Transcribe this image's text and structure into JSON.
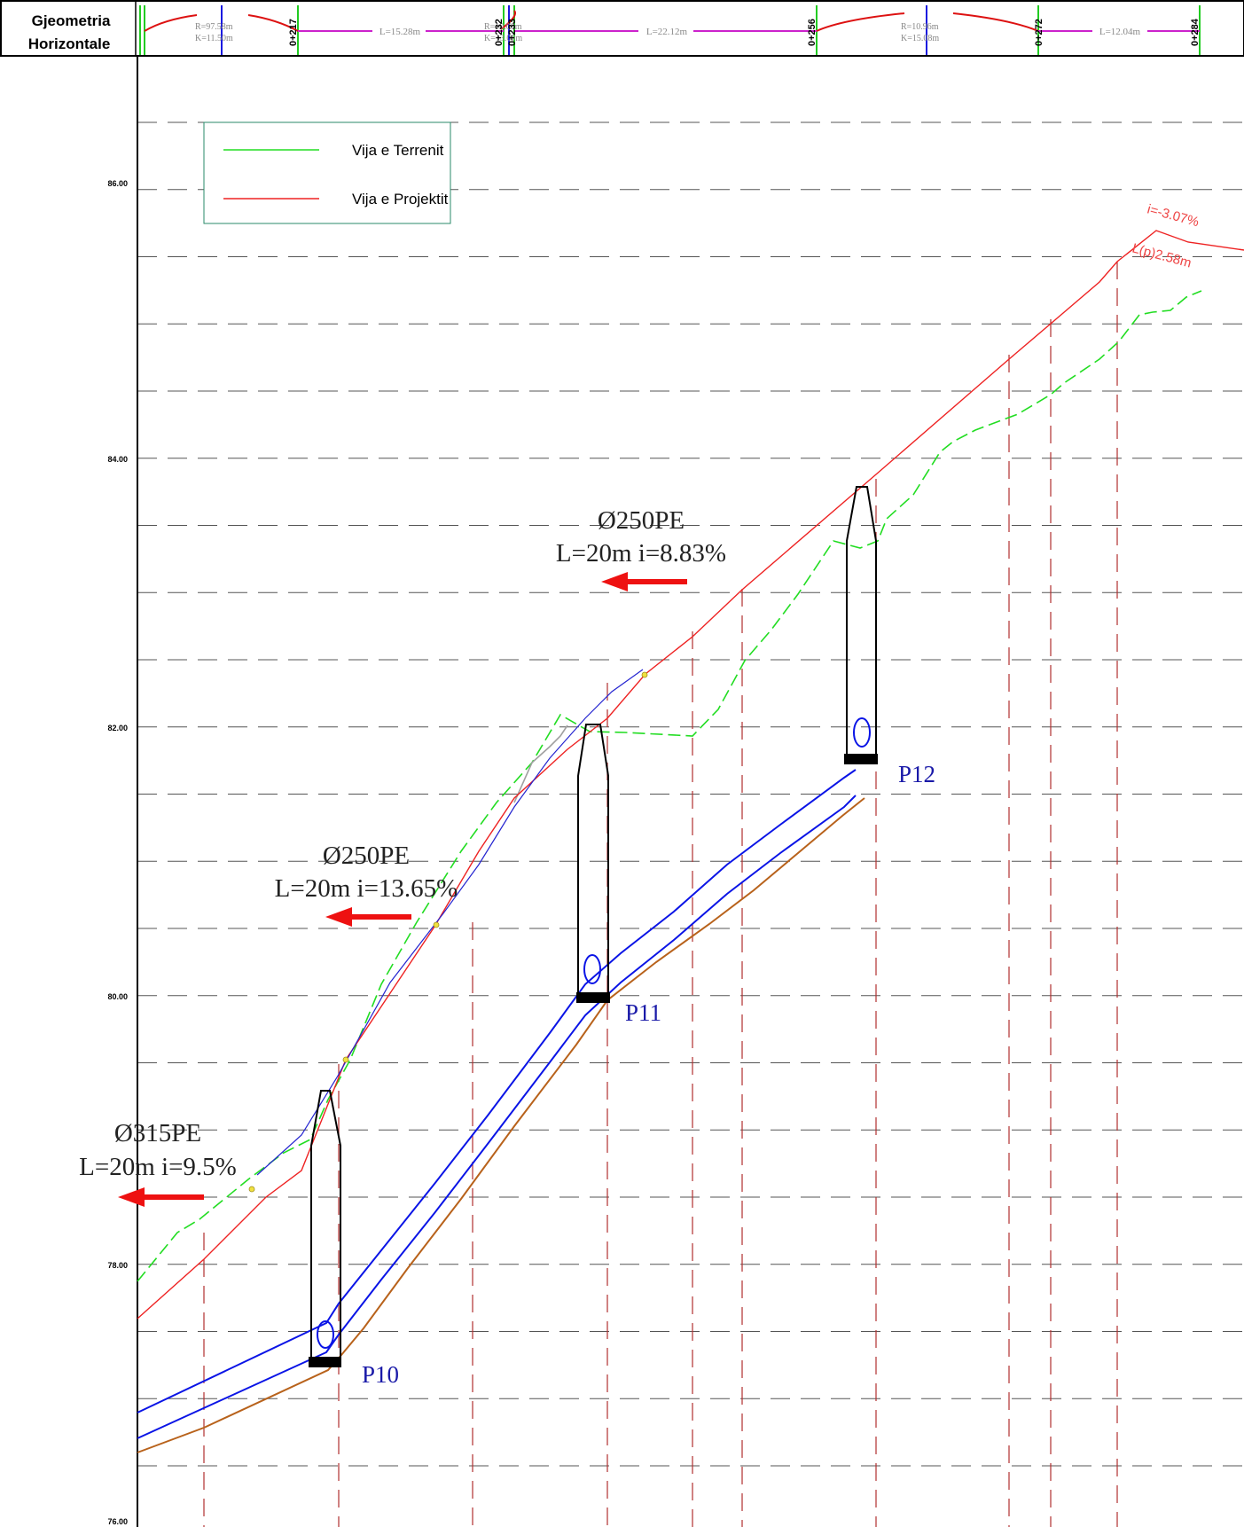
{
  "header": {
    "label_line1": "Gjeometria",
    "label_line2": "Horizontale",
    "curves": [
      {
        "R": "R=97.58m",
        "K": "K=11.50m"
      },
      {
        "R": "R=10.00m",
        "K": "K=13.00m"
      },
      {
        "R": "R=10.96m",
        "K": "K=15.08m"
      }
    ],
    "straights": [
      "L=15.28m",
      "L=22.12m",
      "L=12.04m"
    ],
    "stations": [
      "0+217",
      "0+232",
      "0+233",
      "0+256",
      "0+272",
      "0+284"
    ]
  },
  "y_axis": {
    "labels": [
      "86.00",
      "84.00",
      "82.00",
      "80.00",
      "78.00",
      "76.00"
    ]
  },
  "legend": {
    "terrain_label": "Vija e Terrenit",
    "design_label": "Vija e Projektit",
    "terrain_color": "#22dd22",
    "design_color": "#ee2222"
  },
  "pipes": [
    {
      "line1": "Ø250PE",
      "line2": "L=20m i=8.83%"
    },
    {
      "line1": "Ø250PE",
      "line2": "L=20m i=13.65%"
    },
    {
      "line1": "Ø315PE",
      "line2": "L=20m i=9.5%"
    }
  ],
  "manholes": [
    {
      "label": "P10"
    },
    {
      "label": "P11"
    },
    {
      "label": "P12"
    }
  ],
  "grade": {
    "slope": "i=-3.07%",
    "length": "L(p)2.58m"
  },
  "colors": {
    "pipe": "#0a14e6",
    "invert": "#b8621b",
    "design": "#ee2222",
    "terrain": "#22dd22",
    "grid": "#555555",
    "station_line": "#b03030",
    "label_blue": "#1a1aa8",
    "arrow": "#ee1111",
    "header_straight": "#cc22cc"
  }
}
